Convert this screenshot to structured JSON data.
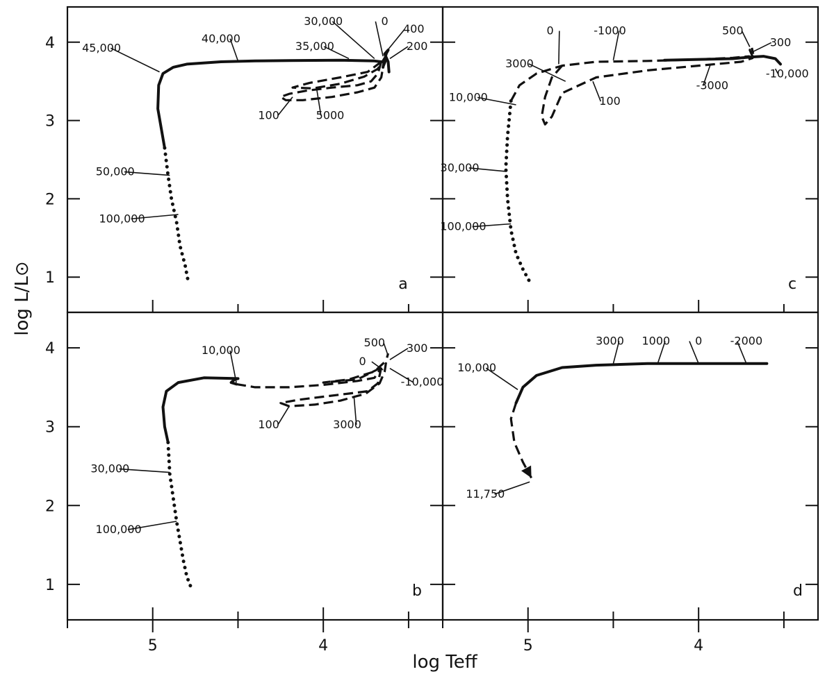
{
  "figure": {
    "x_axis_title": "log Teff",
    "y_axis_title": "log L/L⊙"
  },
  "chart_data": [
    {
      "panel": "a",
      "type": "line",
      "x_reversed": true,
      "xlim": [
        5.5,
        3.3
      ],
      "ylim": [
        0.55,
        4.45
      ],
      "x_ticks_major": [
        5,
        4
      ],
      "y_ticks": [
        1,
        2,
        3,
        4
      ],
      "segments": [
        {
          "style": "solid",
          "points": [
            [
              4.93,
              2.65
            ],
            [
              4.95,
              2.9
            ],
            [
              4.97,
              3.15
            ],
            [
              4.965,
              3.45
            ],
            [
              4.94,
              3.6
            ],
            [
              4.88,
              3.68
            ],
            [
              4.8,
              3.72
            ],
            [
              4.6,
              3.75
            ],
            [
              4.4,
              3.76
            ],
            [
              4.2,
              3.765
            ],
            [
              3.9,
              3.77
            ],
            [
              3.7,
              3.76
            ],
            [
              3.66,
              3.75
            ]
          ]
        },
        {
          "style": "dotted",
          "points": [
            [
              4.93,
              2.65
            ],
            [
              4.91,
              2.3
            ],
            [
              4.89,
              2.0
            ],
            [
              4.86,
              1.7
            ],
            [
              4.84,
              1.4
            ],
            [
              4.81,
              1.15
            ],
            [
              4.79,
              0.92
            ]
          ]
        },
        {
          "style": "dashed",
          "points": [
            [
              3.66,
              3.75
            ],
            [
              3.68,
              3.6
            ],
            [
              3.72,
              3.5
            ],
            [
              3.8,
              3.45
            ],
            [
              3.95,
              3.42
            ],
            [
              4.1,
              3.38
            ],
            [
              4.2,
              3.34
            ],
            [
              4.25,
              3.3
            ],
            [
              4.22,
              3.26
            ],
            [
              4.12,
              3.26
            ],
            [
              3.95,
              3.3
            ],
            [
              3.8,
              3.36
            ],
            [
              3.7,
              3.42
            ],
            [
              3.66,
              3.55
            ],
            [
              3.65,
              3.68
            ],
            [
              3.63,
              3.78
            ]
          ]
        },
        {
          "style": "dashed",
          "points": [
            [
              3.66,
              3.75
            ],
            [
              3.74,
              3.62
            ],
            [
              3.9,
              3.55
            ],
            [
              4.08,
              3.48
            ],
            [
              4.18,
              3.42
            ],
            [
              4.06,
              3.41
            ],
            [
              3.9,
              3.47
            ],
            [
              3.76,
              3.56
            ],
            [
              3.68,
              3.66
            ],
            [
              3.64,
              3.8
            ]
          ]
        },
        {
          "style": "solid",
          "points": [
            [
              3.65,
              3.68
            ],
            [
              3.64,
              3.78
            ],
            [
              3.63,
              3.86
            ],
            [
              3.62,
              3.9
            ],
            [
              3.64,
              3.85
            ],
            [
              3.62,
              3.75
            ],
            [
              3.615,
              3.62
            ]
          ]
        }
      ],
      "annotations": [
        {
          "text": "45,000",
          "at": [
            4.96,
            3.62
          ],
          "label": [
            5.3,
            3.88
          ]
        },
        {
          "text": "40,000",
          "at": [
            4.5,
            3.76
          ],
          "label": [
            4.6,
            4.0
          ]
        },
        {
          "text": "35,000",
          "at": [
            3.85,
            3.79
          ],
          "label": [
            4.05,
            3.9
          ]
        },
        {
          "text": "30,000",
          "at": [
            3.7,
            3.79
          ],
          "label": [
            4.0,
            4.22
          ]
        },
        {
          "text": "0",
          "at": [
            3.65,
            3.82
          ],
          "label": [
            3.64,
            4.22
          ]
        },
        {
          "text": "400",
          "at": [
            3.63,
            3.88
          ],
          "label": [
            3.47,
            4.12
          ]
        },
        {
          "text": "200",
          "at": [
            3.61,
            3.79
          ],
          "label": [
            3.45,
            3.9
          ]
        },
        {
          "text": "100",
          "at": [
            4.18,
            3.3
          ],
          "label": [
            4.32,
            3.02
          ]
        },
        {
          "text": "5000",
          "at": [
            4.04,
            3.42
          ],
          "label": [
            3.96,
            3.02
          ]
        },
        {
          "text": "50,000",
          "at": [
            4.9,
            2.3
          ],
          "label": [
            5.22,
            2.3
          ]
        },
        {
          "text": "100,000",
          "at": [
            4.85,
            1.8
          ],
          "label": [
            5.18,
            1.7
          ]
        }
      ]
    },
    {
      "panel": "b",
      "type": "line",
      "x_reversed": true,
      "xlim": [
        5.5,
        3.3
      ],
      "ylim": [
        0.55,
        4.45
      ],
      "x_ticks_major": [
        5,
        4
      ],
      "y_ticks": [
        1,
        2,
        3,
        4
      ],
      "segments": [
        {
          "style": "solid",
          "points": [
            [
              4.91,
              2.8
            ],
            [
              4.93,
              3.0
            ],
            [
              4.94,
              3.25
            ],
            [
              4.92,
              3.45
            ],
            [
              4.85,
              3.56
            ],
            [
              4.7,
              3.62
            ],
            [
              4.5,
              3.61
            ],
            [
              4.52,
              3.6
            ],
            [
              4.54,
              3.56
            ],
            [
              4.51,
              3.54
            ]
          ]
        },
        {
          "style": "dotted",
          "points": [
            [
              4.91,
              2.8
            ],
            [
              4.9,
              2.4
            ],
            [
              4.88,
              2.1
            ],
            [
              4.86,
              1.8
            ],
            [
              4.84,
              1.55
            ],
            [
              4.82,
              1.3
            ],
            [
              4.8,
              1.1
            ],
            [
              4.77,
              0.93
            ]
          ]
        },
        {
          "style": "dashed",
          "points": [
            [
              4.51,
              3.54
            ],
            [
              4.4,
              3.5
            ],
            [
              4.2,
              3.5
            ],
            [
              4.0,
              3.53
            ],
            [
              3.8,
              3.58
            ],
            [
              3.7,
              3.62
            ],
            [
              3.66,
              3.75
            ]
          ]
        },
        {
          "style": "dashed",
          "points": [
            [
              3.66,
              3.75
            ],
            [
              3.68,
              3.55
            ],
            [
              3.74,
              3.45
            ],
            [
              3.85,
              3.42
            ],
            [
              4.0,
              3.38
            ],
            [
              4.15,
              3.34
            ],
            [
              4.25,
              3.3
            ],
            [
              4.2,
              3.26
            ],
            [
              4.05,
              3.28
            ],
            [
              3.9,
              3.33
            ],
            [
              3.75,
              3.42
            ],
            [
              3.67,
              3.55
            ],
            [
              3.64,
              3.7
            ],
            [
              3.63,
              3.85
            ],
            [
              3.62,
              3.93
            ]
          ]
        },
        {
          "style": "dashed",
          "points": [
            [
              3.66,
              3.75
            ],
            [
              3.8,
              3.6
            ],
            [
              4.0,
              3.56
            ],
            [
              3.85,
              3.6
            ],
            [
              3.7,
              3.7
            ],
            [
              3.64,
              3.82
            ]
          ]
        }
      ],
      "annotations": [
        {
          "text": "10,000",
          "at": [
            4.51,
            3.56
          ],
          "label": [
            4.6,
            3.92
          ]
        },
        {
          "text": "500",
          "at": [
            3.62,
            3.9
          ],
          "label": [
            3.7,
            4.02
          ]
        },
        {
          "text": "300",
          "at": [
            3.61,
            3.85
          ],
          "label": [
            3.45,
            3.95
          ]
        },
        {
          "text": "0",
          "at": [
            3.65,
            3.72
          ],
          "label": [
            3.77,
            3.78
          ]
        },
        {
          "text": "-10,000",
          "at": [
            3.61,
            3.74
          ],
          "label": [
            3.42,
            3.52
          ]
        },
        {
          "text": "100",
          "at": [
            4.2,
            3.26
          ],
          "label": [
            4.32,
            2.98
          ]
        },
        {
          "text": "3000",
          "at": [
            3.82,
            3.38
          ],
          "label": [
            3.86,
            2.98
          ]
        },
        {
          "text": "30,000",
          "at": [
            4.9,
            2.42
          ],
          "label": [
            5.25,
            2.42
          ]
        },
        {
          "text": "100,000",
          "at": [
            4.86,
            1.8
          ],
          "label": [
            5.2,
            1.65
          ]
        }
      ]
    },
    {
      "panel": "c",
      "type": "line",
      "x_reversed": true,
      "xlim": [
        5.5,
        3.3
      ],
      "ylim": [
        0.55,
        4.45
      ],
      "x_ticks_major": [
        5,
        4
      ],
      "y_ticks": [
        1,
        2,
        3,
        4
      ],
      "segments": [
        {
          "style": "dashed",
          "points": [
            [
              5.1,
              3.25
            ],
            [
              5.05,
              3.45
            ],
            [
              4.95,
              3.6
            ],
            [
              4.8,
              3.7
            ],
            [
              4.6,
              3.75
            ],
            [
              4.3,
              3.76
            ],
            [
              4.0,
              3.78
            ],
            [
              3.8,
              3.8
            ],
            [
              3.7,
              3.82
            ]
          ]
        },
        {
          "style": "dotted",
          "points": [
            [
              5.1,
              3.25
            ],
            [
              5.12,
              2.8
            ],
            [
              5.13,
              2.4
            ],
            [
              5.12,
              2.0
            ],
            [
              5.1,
              1.6
            ],
            [
              5.07,
              1.3
            ],
            [
              5.03,
              1.1
            ],
            [
              4.98,
              0.9
            ]
          ]
        },
        {
          "style": "dashed",
          "points": [
            [
              4.8,
              3.7
            ],
            [
              4.86,
              3.55
            ],
            [
              4.9,
              3.3
            ],
            [
              4.92,
              3.05
            ],
            [
              4.9,
              2.95
            ],
            [
              4.86,
              3.05
            ],
            [
              4.8,
              3.35
            ],
            [
              4.6,
              3.55
            ],
            [
              4.3,
              3.64
            ],
            [
              4.0,
              3.7
            ],
            [
              3.75,
              3.75
            ],
            [
              3.68,
              3.8
            ]
          ]
        },
        {
          "style": "dashed",
          "points": [
            [
              3.68,
              3.8
            ],
            [
              3.7,
              3.9
            ],
            [
              3.69,
              3.95
            ],
            [
              3.68,
              3.85
            ]
          ]
        },
        {
          "style": "solid",
          "points": [
            [
              4.2,
              3.77
            ],
            [
              4.0,
              3.78
            ],
            [
              3.8,
              3.79
            ],
            [
              3.7,
              3.81
            ],
            [
              3.62,
              3.82
            ],
            [
              3.55,
              3.79
            ],
            [
              3.52,
              3.72
            ]
          ]
        }
      ],
      "annotations": [
        {
          "text": "0",
          "at": [
            4.82,
            3.72
          ],
          "label": [
            4.87,
            4.1
          ]
        },
        {
          "text": "-1000",
          "at": [
            4.5,
            3.77
          ],
          "label": [
            4.52,
            4.1
          ]
        },
        {
          "text": "500",
          "at": [
            3.7,
            3.94
          ],
          "label": [
            3.8,
            4.1
          ]
        },
        {
          "text": "300",
          "at": [
            3.68,
            3.88
          ],
          "label": [
            3.52,
            3.95
          ]
        },
        {
          "text": "3000",
          "at": [
            4.78,
            3.5
          ],
          "label": [
            5.05,
            3.68
          ]
        },
        {
          "text": "-10,000",
          "at": [
            3.55,
            3.66
          ],
          "label": [
            3.48,
            3.55
          ]
        },
        {
          "text": "-3000",
          "at": [
            3.93,
            3.72
          ],
          "label": [
            3.92,
            3.4
          ]
        },
        {
          "text": "100",
          "at": [
            4.62,
            3.5
          ],
          "label": [
            4.52,
            3.2
          ]
        },
        {
          "text": "10,000",
          "at": [
            5.07,
            3.2
          ],
          "label": [
            5.35,
            3.25
          ]
        },
        {
          "text": "30,000",
          "at": [
            5.13,
            2.35
          ],
          "label": [
            5.4,
            2.35
          ]
        },
        {
          "text": "100,000",
          "at": [
            5.1,
            1.68
          ],
          "label": [
            5.38,
            1.6
          ]
        }
      ]
    },
    {
      "panel": "d",
      "type": "line",
      "x_reversed": true,
      "xlim": [
        5.5,
        3.3
      ],
      "ylim": [
        0.55,
        4.45
      ],
      "x_ticks_major": [
        5,
        4
      ],
      "y_ticks": [
        1,
        2,
        3,
        4
      ],
      "segments": [
        {
          "style": "solid",
          "points": [
            [
              5.07,
              3.3
            ],
            [
              5.03,
              3.5
            ],
            [
              4.95,
              3.65
            ],
            [
              4.8,
              3.75
            ],
            [
              4.6,
              3.78
            ],
            [
              4.3,
              3.8
            ],
            [
              4.0,
              3.8
            ],
            [
              3.6,
              3.8
            ]
          ]
        },
        {
          "style": "dashed",
          "points": [
            [
              5.07,
              3.3
            ],
            [
              5.1,
              3.1
            ],
            [
              5.08,
              2.8
            ],
            [
              5.03,
              2.55
            ],
            [
              4.98,
              2.35
            ]
          ]
        }
      ],
      "annotations": [
        {
          "text": "10,000",
          "at": [
            5.06,
            3.47
          ],
          "label": [
            5.3,
            3.7
          ]
        },
        {
          "text": "3000",
          "at": [
            4.5,
            3.8
          ],
          "label": [
            4.52,
            4.04
          ]
        },
        {
          "text": "1000",
          "at": [
            4.24,
            3.8
          ],
          "label": [
            4.25,
            4.04
          ]
        },
        {
          "text": "0",
          "at": [
            4.0,
            3.8
          ],
          "label": [
            4.0,
            4.04
          ]
        },
        {
          "text": "-2000",
          "at": [
            3.72,
            3.8
          ],
          "label": [
            3.72,
            4.04
          ]
        },
        {
          "text": "11,750",
          "at": [
            4.99,
            2.3
          ],
          "label": [
            5.25,
            2.1
          ]
        }
      ]
    }
  ]
}
